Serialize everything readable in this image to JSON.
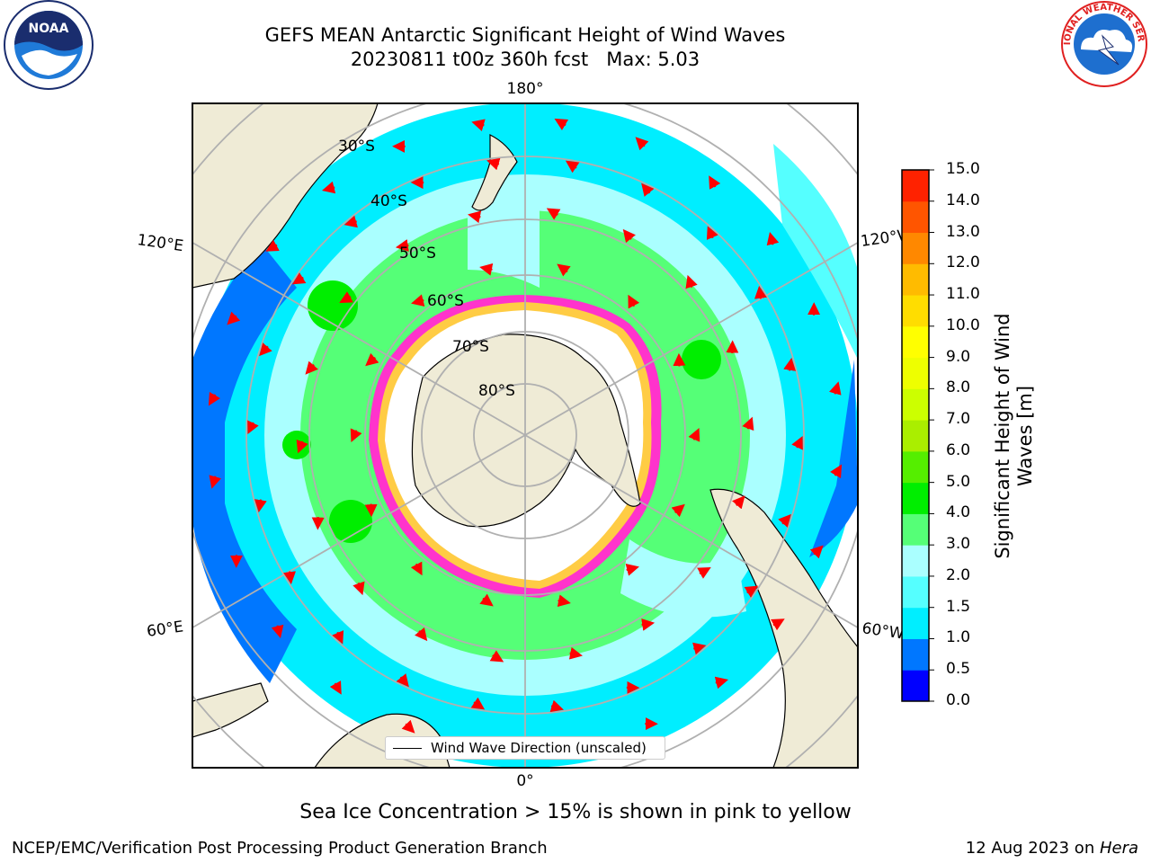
{
  "header": {
    "title_line1": "GEFS MEAN Antarctic Significant Height of Wind Waves",
    "title_line2": "20230811 t00z 360h fcst   Max: 5.03"
  },
  "logos": {
    "noaa": {
      "text": "NOAA"
    },
    "nws": {
      "text": "NATIONAL WEATHER SERVICE"
    }
  },
  "map": {
    "projection": "south-polar-stereographic",
    "longitude_labels": [
      "180°",
      "120°E",
      "120°W",
      "60°E",
      "60°W",
      "0°"
    ],
    "latitude_labels": [
      "30°S",
      "40°S",
      "50°S",
      "60°S",
      "70°S",
      "80°S"
    ],
    "colors": {
      "land": "#efebd6",
      "ice_edge": "#ff33cc",
      "arrow": "#ff0000",
      "grid": "#b0b0b0"
    }
  },
  "legend": {
    "label": "Wind Wave Direction (unscaled)"
  },
  "colorbar": {
    "label": "Significant Height of Wind Waves [m]",
    "ticks": [
      "15.0",
      "14.0",
      "13.0",
      "12.0",
      "11.0",
      "10.0",
      "9.0",
      "8.0",
      "7.0",
      "6.0",
      "5.0",
      "4.0",
      "3.0",
      "2.0",
      "1.5",
      "1.0",
      "0.5",
      "0.0"
    ],
    "colors": [
      "#0000ff",
      "#0077ff",
      "#00eeff",
      "#55ffff",
      "#aaffff",
      "#55ff77",
      "#00ee00",
      "#55ee00",
      "#aaee00",
      "#ccff00",
      "#eeff00",
      "#ffff00",
      "#ffdd00",
      "#ffbb00",
      "#ff8800",
      "#ff5500",
      "#ff2200"
    ]
  },
  "footer": {
    "note": "Sea Ice Concentration > 15% is shown in pink to yellow",
    "credit_left": "NCEP/EMC/Verification Post Processing Product Generation Branch",
    "credit_date": "12 Aug 2023 on ",
    "credit_host": "Hera"
  }
}
